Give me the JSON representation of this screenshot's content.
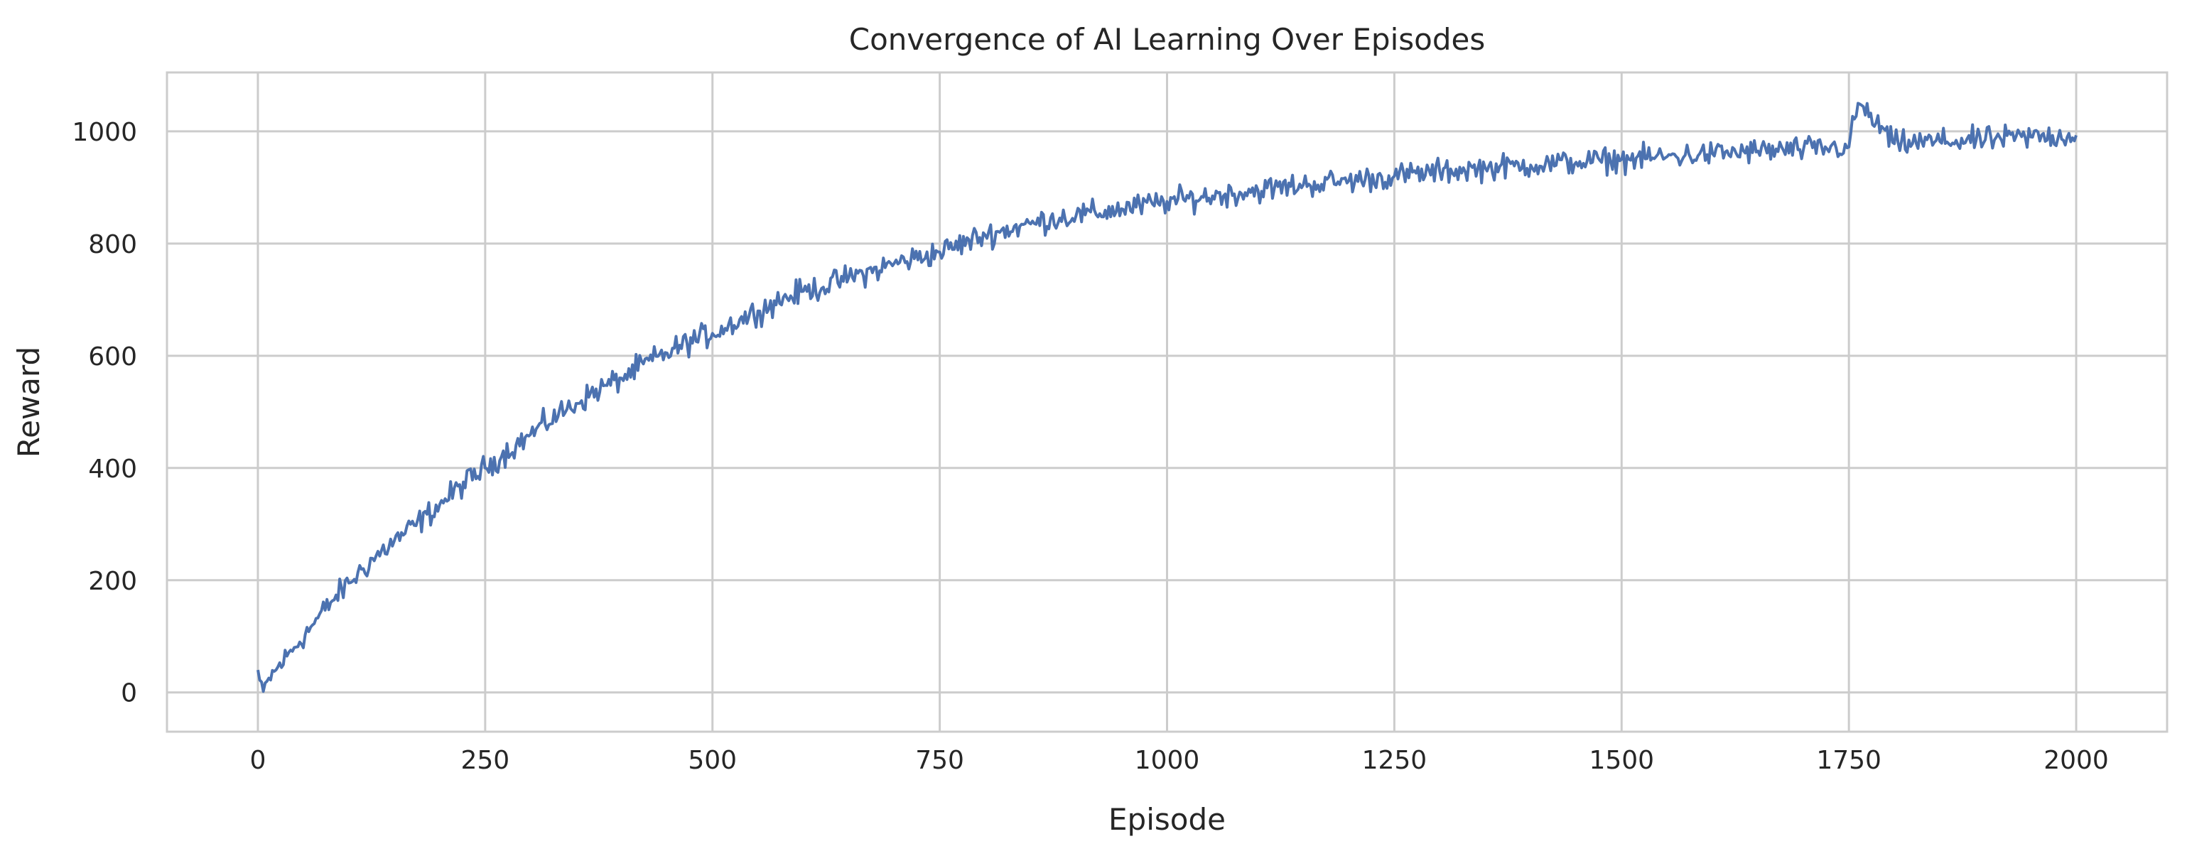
{
  "chart_data": {
    "type": "line",
    "title": "Convergence of AI Learning Over Episodes",
    "xlabel": "Episode",
    "ylabel": "Reward",
    "xlim": [
      -100,
      2100
    ],
    "ylim": [
      -70,
      1105
    ],
    "xticks": [
      0,
      250,
      500,
      750,
      1000,
      1250,
      1500,
      1750,
      2000
    ],
    "yticks": [
      0,
      200,
      400,
      600,
      800,
      1000
    ],
    "grid": true,
    "legend": "none",
    "series": [
      {
        "color": "#4c72b0",
        "x": [
          0,
          5,
          10,
          20,
          40,
          60,
          80,
          100,
          125,
          150,
          175,
          200,
          225,
          250,
          275,
          300,
          325,
          350,
          375,
          400,
          425,
          450,
          475,
          500,
          525,
          550,
          575,
          600,
          625,
          650,
          675,
          700,
          725,
          750,
          775,
          800,
          825,
          850,
          875,
          900,
          925,
          950,
          975,
          1000,
          1050,
          1100,
          1150,
          1200,
          1250,
          1300,
          1350,
          1400,
          1450,
          1500,
          1550,
          1600,
          1650,
          1700,
          1750,
          1760,
          1800,
          1850,
          1900,
          1950,
          2000
        ],
        "y": [
          40,
          -10,
          20,
          40,
          80,
          120,
          160,
          195,
          235,
          270,
          300,
          335,
          370,
          400,
          430,
          460,
          490,
          515,
          540,
          560,
          585,
          605,
          625,
          640,
          660,
          680,
          700,
          715,
          725,
          740,
          750,
          765,
          775,
          785,
          800,
          815,
          825,
          835,
          845,
          850,
          855,
          862,
          868,
          875,
          885,
          895,
          905,
          912,
          920,
          928,
          935,
          940,
          945,
          950,
          955,
          960,
          965,
          968,
          972,
          1050,
          978,
          982,
          985,
          990,
          993
        ],
        "noise": 22
      }
    ]
  }
}
